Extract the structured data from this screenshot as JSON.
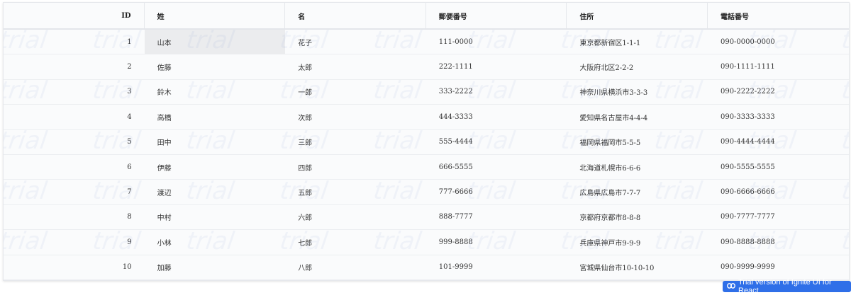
{
  "watermark": "trial",
  "columns": [
    "ID",
    "姓",
    "名",
    "郵便番号",
    "住所",
    "電話番号"
  ],
  "rows": [
    [
      "1",
      "山本",
      "花子",
      "111-0000",
      "東京都新宿区1-1-1",
      "090-0000-0000"
    ],
    [
      "2",
      "佐藤",
      "太郎",
      "222-1111",
      "大阪府北区2-2-2",
      "090-1111-1111"
    ],
    [
      "3",
      "鈴木",
      "一郎",
      "333-2222",
      "神奈川県横浜市3-3-3",
      "090-2222-2222"
    ],
    [
      "4",
      "高橋",
      "次郎",
      "444-3333",
      "愛知県名古屋市4-4-4",
      "090-3333-3333"
    ],
    [
      "5",
      "田中",
      "三郎",
      "555-4444",
      "福岡県福岡市5-5-5",
      "090-4444-4444"
    ],
    [
      "6",
      "伊藤",
      "四郎",
      "666-5555",
      "北海道札幌市6-6-6",
      "090-5555-5555"
    ],
    [
      "7",
      "渡辺",
      "五郎",
      "777-6666",
      "広島県広島市7-7-7",
      "090-6666-6666"
    ],
    [
      "8",
      "中村",
      "六郎",
      "888-7777",
      "京都府京都市8-8-8",
      "090-7777-7777"
    ],
    [
      "9",
      "小林",
      "七郎",
      "999-8888",
      "兵庫県神戸市9-9-9",
      "090-8888-8888"
    ],
    [
      "10",
      "加藤",
      "八郎",
      "101-9999",
      "宮城県仙台市10-10-10",
      "090-9999-9999"
    ]
  ],
  "selected_cell": {
    "row": 0,
    "column": 1
  },
  "trial_badge": {
    "label": "Trial version of Ignite UI for React",
    "icon": "link-icon",
    "color": "#2f6fe8"
  }
}
